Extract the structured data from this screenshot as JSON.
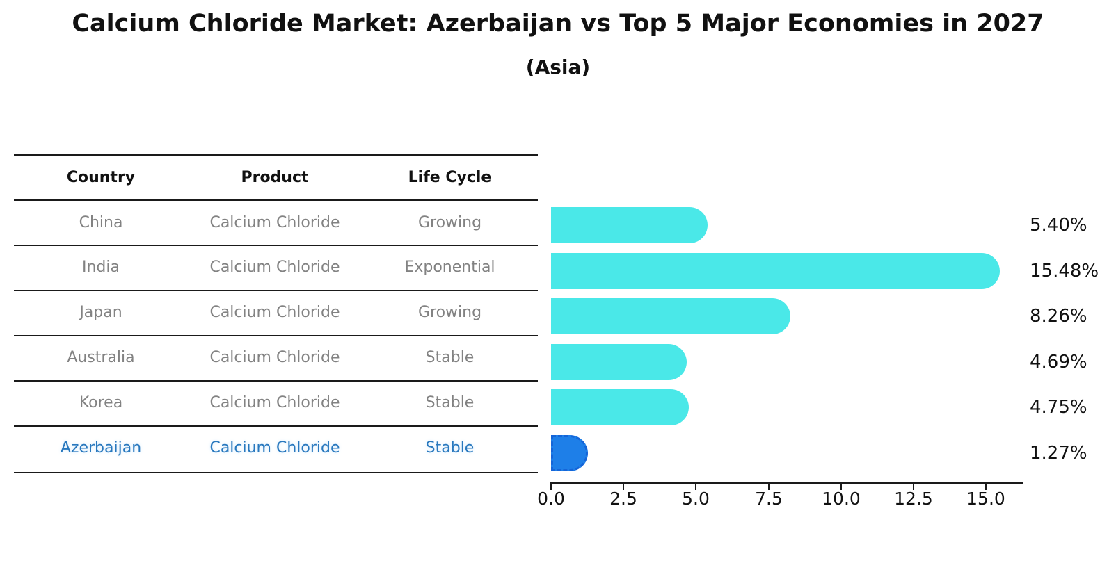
{
  "title": "Calcium Chloride Market: Azerbaijan vs Top 5 Major Economies in 2027",
  "subtitle": "(Asia)",
  "table": {
    "headers": {
      "country": "Country",
      "product": "Product",
      "life_cycle": "Life Cycle"
    },
    "rows": [
      {
        "country": "China",
        "product": "Calcium Chloride",
        "life_cycle": "Growing",
        "highlight": false
      },
      {
        "country": "India",
        "product": "Calcium Chloride",
        "life_cycle": "Exponential",
        "highlight": false
      },
      {
        "country": "Japan",
        "product": "Calcium Chloride",
        "life_cycle": "Growing",
        "highlight": false
      },
      {
        "country": "Australia",
        "product": "Calcium Chloride",
        "life_cycle": "Stable",
        "highlight": false
      },
      {
        "country": "Korea",
        "product": "Calcium Chloride",
        "life_cycle": "Stable",
        "highlight": false
      },
      {
        "country": "Azerbaijan",
        "product": "Calcium Chloride",
        "life_cycle": "Stable",
        "highlight": true
      }
    ]
  },
  "chart_data": {
    "type": "bar",
    "orientation": "horizontal",
    "title": "Calcium Chloride Market: Azerbaijan vs Top 5 Major Economies in 2027 (Asia)",
    "categories": [
      "China",
      "India",
      "Japan",
      "Australia",
      "Korea",
      "Azerbaijan"
    ],
    "values": [
      5.4,
      15.48,
      8.26,
      4.69,
      4.75,
      1.27
    ],
    "value_labels": [
      "5.40%",
      "15.48%",
      "8.26%",
      "4.69%",
      "4.75%",
      "1.27%"
    ],
    "x_ticks": [
      "0.0",
      "2.5",
      "5.0",
      "7.5",
      "10.0",
      "12.5",
      "15.0"
    ],
    "xlim": [
      0,
      16.27
    ],
    "grid": false,
    "legend": null,
    "bar_color": "#4ae8e8",
    "highlight_index": 5,
    "highlight_bar_color": "#1e7fe8",
    "highlight_border_color": "#1565d8",
    "text_color": "#111111",
    "muted_text_color": "#828282",
    "highlight_text_color": "#2878be"
  }
}
